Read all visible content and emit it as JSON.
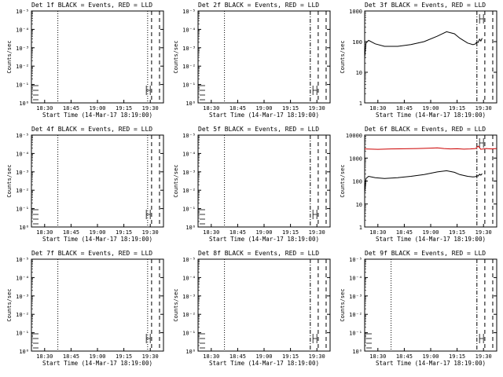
{
  "figure": {
    "ylabel": "Counts/sec",
    "xlabel": "Start Time (14-Mar-17 18:19:00)",
    "x_tick_labels": [
      "18:30",
      "18:45",
      "19:00",
      "19:15",
      "19:30",
      "19:45"
    ]
  },
  "chart_data": [
    {
      "type": "line",
      "title": "Det 1f BLACK = Events, RED = LLD",
      "y_scale": "log",
      "ylim": [
        1,
        1000
      ],
      "y_tick_labels": [
        "10⁰",
        "10⁻¹",
        "10⁻²",
        "10⁻³",
        "10⁻⁴",
        "10⁻⁵"
      ],
      "xlim": [
        0,
        100
      ],
      "markers": {
        "dotted": [
          20,
          88
        ],
        "dashed": [
          91,
          97
        ],
        "dashdot": []
      },
      "series": []
    },
    {
      "type": "line",
      "title": "Det 2f BLACK = Events, RED = LLD",
      "y_scale": "log",
      "ylim": [
        1,
        1000
      ],
      "y_tick_labels": [
        "10⁰",
        "10⁻¹",
        "10⁻²",
        "10⁻³",
        "10⁻⁴",
        "10⁻⁵"
      ],
      "xlim": [
        0,
        100
      ],
      "markers": {
        "dotted": [
          20
        ],
        "dashed": [
          91,
          97
        ],
        "dashdot": [
          85
        ]
      },
      "series": []
    },
    {
      "type": "line",
      "title": "Det 3f BLACK = Events, RED = LLD",
      "y_scale": "log",
      "ylim": [
        1,
        1000
      ],
      "y_tick_labels": [
        "1",
        "10",
        "100",
        "1000"
      ],
      "xlim": [
        0,
        100
      ],
      "markers": {
        "dotted": [],
        "dashed": [
          91,
          97
        ],
        "dashdot": [
          85
        ]
      },
      "series": [
        {
          "color": "#000000",
          "x": [
            0,
            1,
            3,
            8,
            15,
            25,
            35,
            45,
            55,
            62,
            68,
            72,
            78,
            82,
            84,
            85,
            86,
            87,
            88,
            89
          ],
          "y": [
            30,
            90,
            110,
            85,
            70,
            70,
            80,
            100,
            150,
            210,
            180,
            130,
            90,
            80,
            85,
            100,
            95,
            120,
            105,
            130
          ]
        }
      ]
    },
    {
      "type": "line",
      "title": "Det 4f BLACK = Events, RED = LLD",
      "y_scale": "log",
      "ylim": [
        1,
        1000
      ],
      "y_tick_labels": [
        "10⁰",
        "10⁻¹",
        "10⁻²",
        "10⁻³",
        "10⁻⁴",
        "10⁻⁵"
      ],
      "xlim": [
        0,
        100
      ],
      "markers": {
        "dotted": [
          20,
          88
        ],
        "dashed": [
          91,
          97
        ],
        "dashdot": []
      },
      "series": []
    },
    {
      "type": "line",
      "title": "Det 5f BLACK = Events, RED = LLD",
      "y_scale": "log",
      "ylim": [
        1,
        1000
      ],
      "y_tick_labels": [
        "10⁰",
        "10⁻¹",
        "10⁻²",
        "10⁻³",
        "10⁻⁴",
        "10⁻⁵"
      ],
      "xlim": [
        0,
        100
      ],
      "markers": {
        "dotted": [
          20
        ],
        "dashed": [
          91,
          97
        ],
        "dashdot": [
          85
        ]
      },
      "series": []
    },
    {
      "type": "line",
      "title": "Det 6f BLACK = Events, RED = LLD",
      "y_scale": "log",
      "ylim": [
        1,
        10000
      ],
      "y_tick_labels": [
        "1",
        "10",
        "100",
        "1000",
        "10000"
      ],
      "xlim": [
        0,
        100
      ],
      "markers": {
        "dotted": [],
        "dashed": [
          91,
          97
        ],
        "dashdot": [
          85
        ]
      },
      "series": [
        {
          "color": "#cc0000",
          "x": [
            0,
            5,
            10,
            20,
            30,
            40,
            50,
            55,
            60,
            65,
            70,
            75,
            80,
            84,
            86,
            88,
            92,
            96,
            100
          ],
          "y": [
            2500,
            2450,
            2400,
            2500,
            2550,
            2600,
            2700,
            2800,
            2600,
            2500,
            2550,
            2450,
            2500,
            2600,
            3300,
            2400,
            2600,
            2500,
            2600
          ]
        },
        {
          "color": "#000000",
          "x": [
            0,
            1,
            3,
            8,
            15,
            25,
            35,
            45,
            55,
            62,
            68,
            72,
            78,
            82,
            84,
            85,
            86,
            87,
            88,
            89
          ],
          "y": [
            30,
            130,
            160,
            140,
            130,
            140,
            160,
            190,
            250,
            280,
            240,
            190,
            160,
            150,
            155,
            170,
            165,
            200,
            180,
            210
          ]
        }
      ]
    },
    {
      "type": "line",
      "title": "Det 7f BLACK = Events, RED = LLD",
      "y_scale": "log",
      "ylim": [
        1,
        1000
      ],
      "y_tick_labels": [
        "10⁰",
        "10⁻¹",
        "10⁻²",
        "10⁻³",
        "10⁻⁴",
        "10⁻⁵"
      ],
      "xlim": [
        0,
        100
      ],
      "markers": {
        "dotted": [
          20,
          88
        ],
        "dashed": [
          91,
          97
        ],
        "dashdot": []
      },
      "series": []
    },
    {
      "type": "line",
      "title": "Det 8f BLACK = Events, RED = LLD",
      "y_scale": "log",
      "ylim": [
        1,
        1000
      ],
      "y_tick_labels": [
        "10⁰",
        "10⁻¹",
        "10⁻²",
        "10⁻³",
        "10⁻⁴",
        "10⁻⁵"
      ],
      "xlim": [
        0,
        100
      ],
      "markers": {
        "dotted": [
          20
        ],
        "dashed": [
          91,
          97
        ],
        "dashdot": [
          85
        ]
      },
      "series": []
    },
    {
      "type": "line",
      "title": "Det 9f BLACK = Events, RED = LLD",
      "y_scale": "log",
      "ylim": [
        1,
        1000
      ],
      "y_tick_labels": [
        "10⁰",
        "10⁻¹",
        "10⁻²",
        "10⁻³",
        "10⁻⁴",
        "10⁻⁵"
      ],
      "xlim": [
        0,
        100
      ],
      "markers": {
        "dotted": [
          20
        ],
        "dashed": [
          91,
          97
        ],
        "dashdot": [
          85
        ]
      },
      "series": []
    }
  ]
}
